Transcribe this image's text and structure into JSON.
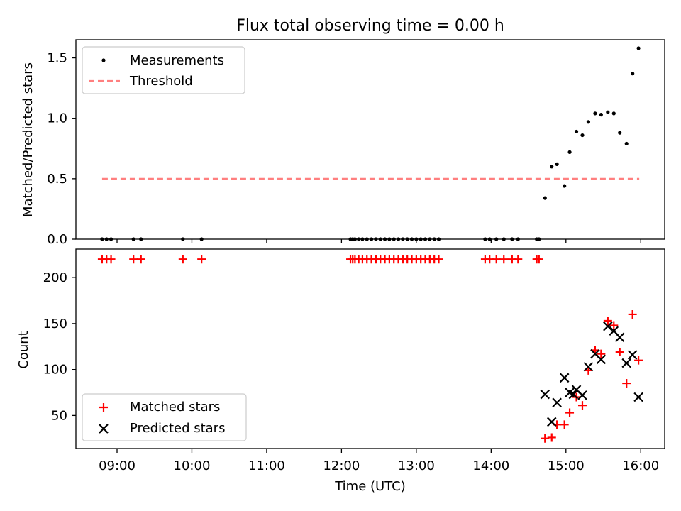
{
  "colors": {
    "measurement": "#000000",
    "threshold": "#ff7f7f",
    "matched": "#ff0000",
    "predicted": "#000000",
    "frame": "#000000"
  },
  "chart_data": [
    {
      "type": "scatter",
      "title": "Flux total observing time = 0.00 h",
      "xlabel": "",
      "ylabel": "Matched/Predicted stars",
      "xlim": [
        8.45,
        16.32
      ],
      "ylim": [
        0,
        1.65
      ],
      "x_ticks": [
        9,
        10,
        11,
        12,
        13,
        14,
        15,
        16
      ],
      "y_ticks": [
        {
          "value": 0,
          "label": "0.0"
        },
        {
          "value": 0.5,
          "label": "0.5"
        },
        {
          "value": 1.0,
          "label": "1.0"
        },
        {
          "value": 1.5,
          "label": "1.5"
        }
      ],
      "legend": {
        "position": "top-left",
        "entries": [
          "Measurements",
          "Threshold"
        ]
      },
      "threshold": {
        "value": 0.5,
        "x_range": [
          8.8,
          15.98
        ],
        "label": "Threshold"
      },
      "series": [
        {
          "name": "Measurements",
          "x": [
            8.8,
            8.86,
            8.92,
            9.22,
            9.32,
            9.88,
            10.13,
            12.12,
            12.15,
            12.18,
            12.23,
            12.28,
            12.34,
            12.4,
            12.46,
            12.52,
            12.58,
            12.64,
            12.7,
            12.76,
            12.82,
            12.88,
            12.94,
            13.0,
            13.06,
            13.12,
            13.18,
            13.24,
            13.3,
            13.92,
            13.98,
            14.07,
            14.17,
            14.28,
            14.36,
            14.61,
            14.64,
            14.72,
            14.81,
            14.88,
            14.98,
            15.05,
            15.14,
            15.22,
            15.3,
            15.39,
            15.47,
            15.56,
            15.64,
            15.72,
            15.81,
            15.89,
            15.97
          ],
          "y": [
            0,
            0,
            0,
            0,
            0,
            0,
            0,
            0,
            0,
            0,
            0,
            0,
            0,
            0,
            0,
            0,
            0,
            0,
            0,
            0,
            0,
            0,
            0,
            0,
            0,
            0,
            0,
            0,
            0,
            0,
            0,
            0,
            0,
            0,
            0,
            0,
            0,
            0.34,
            0.6,
            0.62,
            0.44,
            0.72,
            0.89,
            0.86,
            0.97,
            1.04,
            1.03,
            1.05,
            1.04,
            0.88,
            0.79,
            1.37,
            1.58
          ]
        }
      ]
    },
    {
      "type": "scatter",
      "title": "",
      "xlabel": "Time (UTC)",
      "ylabel": "Count",
      "xlim": [
        8.45,
        16.32
      ],
      "ylim": [
        14,
        231
      ],
      "x_ticks": [
        {
          "value": 9,
          "label": "09:00"
        },
        {
          "value": 10,
          "label": "10:00"
        },
        {
          "value": 11,
          "label": "11:00"
        },
        {
          "value": 12,
          "label": "12:00"
        },
        {
          "value": 13,
          "label": "13:00"
        },
        {
          "value": 14,
          "label": "14:00"
        },
        {
          "value": 15,
          "label": "15:00"
        },
        {
          "value": 16,
          "label": "16:00"
        }
      ],
      "y_ticks": [
        {
          "value": 50,
          "label": "50"
        },
        {
          "value": 100,
          "label": "100"
        },
        {
          "value": 150,
          "label": "150"
        },
        {
          "value": 200,
          "label": "200"
        }
      ],
      "legend": {
        "position": "bottom-left",
        "entries": [
          "Matched stars",
          "Predicted stars"
        ]
      },
      "series": [
        {
          "name": "Matched stars",
          "marker": "plus",
          "x": [
            8.8,
            8.86,
            8.92,
            9.22,
            9.32,
            9.88,
            10.13,
            12.12,
            12.15,
            12.18,
            12.23,
            12.28,
            12.34,
            12.4,
            12.46,
            12.52,
            12.58,
            12.64,
            12.7,
            12.76,
            12.82,
            12.88,
            12.94,
            13.0,
            13.06,
            13.12,
            13.18,
            13.24,
            13.3,
            13.92,
            13.98,
            14.07,
            14.17,
            14.28,
            14.36,
            14.61,
            14.64,
            14.72,
            14.81,
            14.88,
            14.98,
            15.05,
            15.14,
            15.22,
            15.3,
            15.39,
            15.47,
            15.56,
            15.64,
            15.72,
            15.81,
            15.89,
            15.97
          ],
          "y": [
            220,
            220,
            220,
            220,
            220,
            220,
            220,
            220,
            220,
            220,
            220,
            220,
            220,
            220,
            220,
            220,
            220,
            220,
            220,
            220,
            220,
            220,
            220,
            220,
            220,
            220,
            220,
            220,
            220,
            220,
            220,
            220,
            220,
            220,
            220,
            220,
            220,
            25,
            26,
            40,
            40,
            53,
            70,
            61,
            99,
            121,
            117,
            153,
            148,
            119,
            85,
            160,
            110
          ]
        },
        {
          "name": "Predicted stars",
          "marker": "x",
          "x": [
            14.72,
            14.81,
            14.88,
            14.98,
            15.05,
            15.1,
            15.14,
            15.22,
            15.3,
            15.39,
            15.47,
            15.56,
            15.64,
            15.72,
            15.81,
            15.89,
            15.97
          ],
          "y": [
            73,
            43,
            64,
            91,
            75,
            73,
            78,
            72,
            103,
            117,
            111,
            147,
            142,
            135,
            107,
            116,
            70
          ]
        }
      ]
    }
  ]
}
